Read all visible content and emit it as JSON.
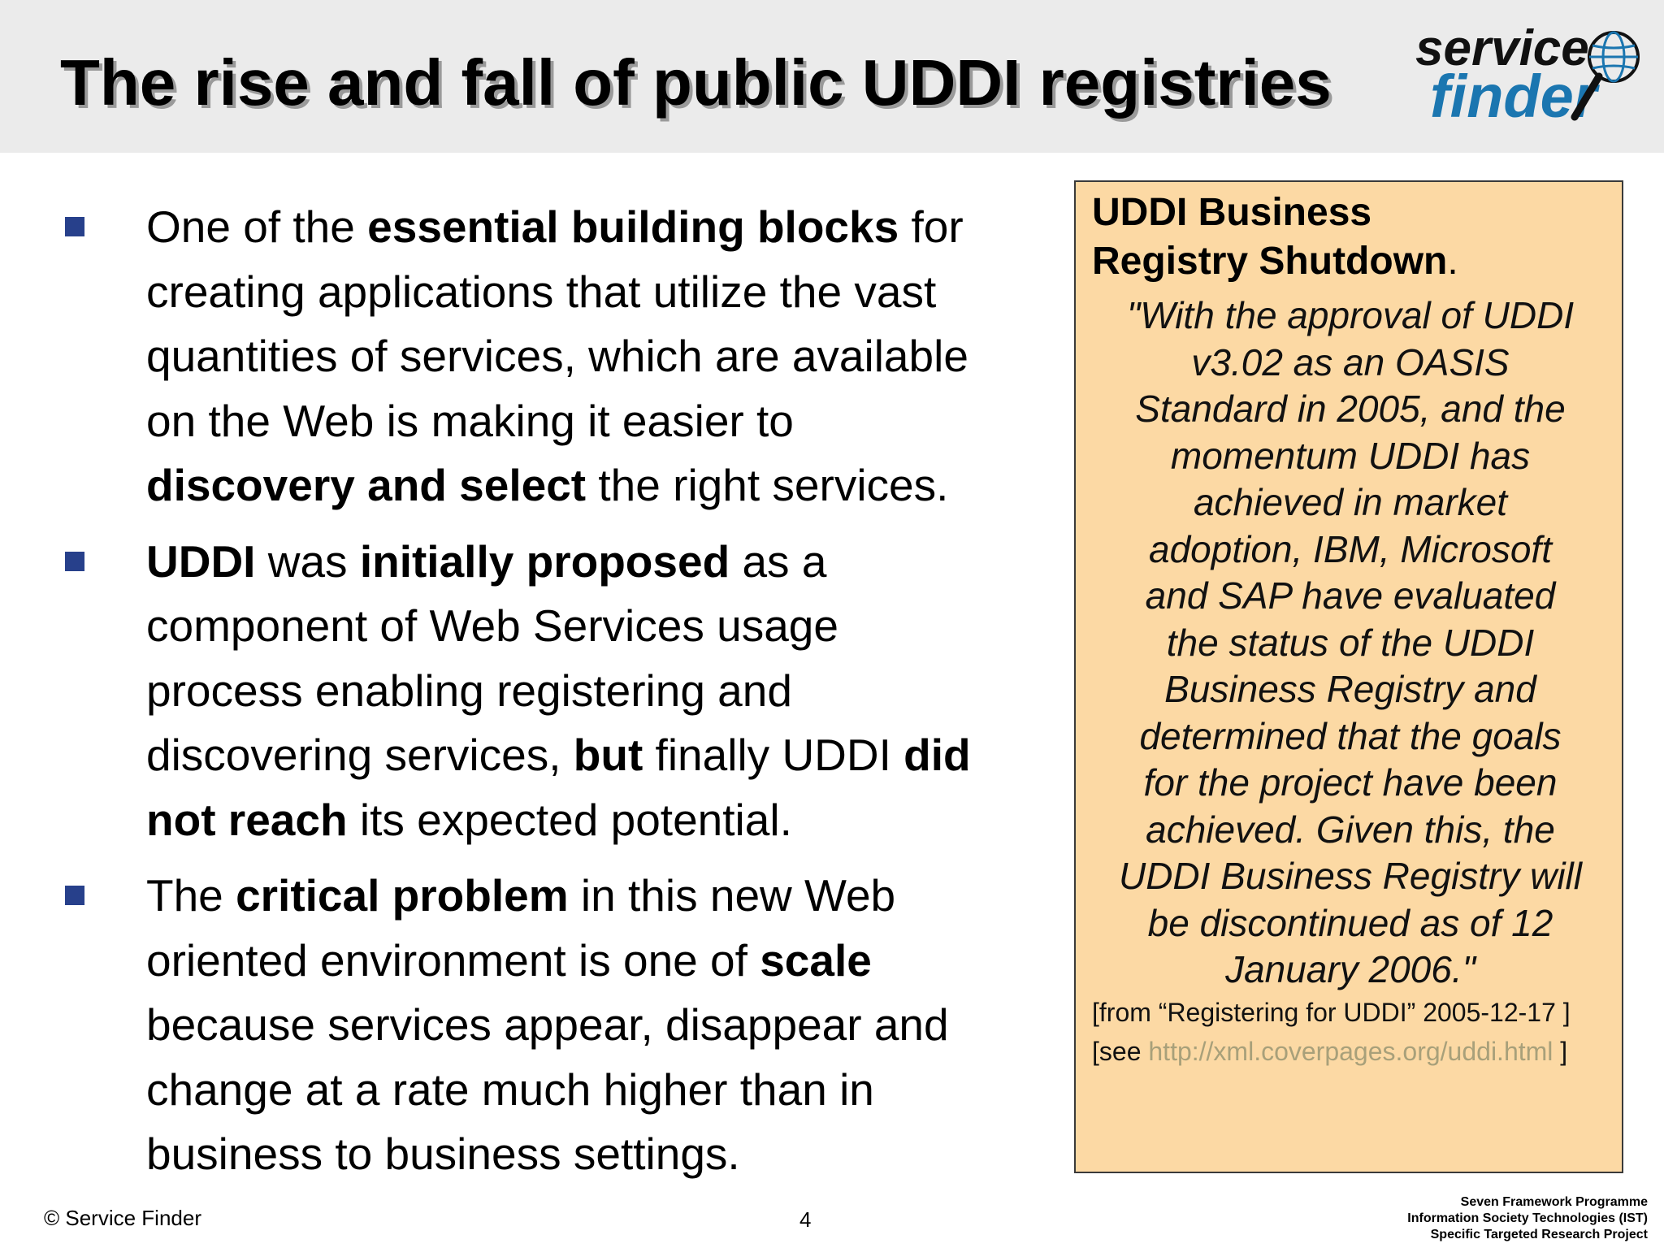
{
  "slide": {
    "title": "The rise and fall of public UDDI registries"
  },
  "logo": {
    "word1": "service",
    "word2": "finder",
    "icon": "globe-magnifier-icon",
    "color_accent": "#1b76b0"
  },
  "bullets": [
    {
      "lines": [
        [
          {
            "t": "One of the "
          },
          {
            "t": "essential building blocks",
            "b": true
          },
          {
            "t": " for"
          }
        ],
        [
          {
            "t": "creating applications that utilize the vast"
          }
        ],
        [
          {
            "t": "quantities of services, which are available"
          }
        ],
        [
          {
            "t": "on the Web is making it easier to"
          }
        ],
        [
          {
            "t": "discovery and select",
            "b": true
          },
          {
            "t": " the right services."
          }
        ]
      ]
    },
    {
      "lines": [
        [
          {
            "t": "UDDI",
            "b": true
          },
          {
            "t": " was "
          },
          {
            "t": "initially proposed",
            "b": true
          },
          {
            "t": " as a"
          }
        ],
        [
          {
            "t": "component of Web Services usage"
          }
        ],
        [
          {
            "t": "process enabling registering and"
          }
        ],
        [
          {
            "t": "discovering services, "
          },
          {
            "t": "but",
            "b": true
          },
          {
            "t": " finally UDDI "
          },
          {
            "t": "did",
            "b": true
          }
        ],
        [
          {
            "t": "not reach",
            "b": true
          },
          {
            "t": " its expected potential."
          }
        ]
      ]
    },
    {
      "lines": [
        [
          {
            "t": "The "
          },
          {
            "t": "critical problem",
            "b": true
          },
          {
            "t": " in this new Web"
          }
        ],
        [
          {
            "t": "oriented environment is one of "
          },
          {
            "t": "scale",
            "b": true
          }
        ],
        [
          {
            "t": "because services appear, disappear and"
          }
        ],
        [
          {
            "t": "change at a rate much higher than in"
          }
        ],
        [
          {
            "t": "business to business settings."
          }
        ]
      ]
    }
  ],
  "sidebar": {
    "heading_line1": "UDDI Business",
    "heading_line2": "Registry Shutdown",
    "heading_dot": ".",
    "quote_lines": [
      "\"With the approval of UDDI",
      "v3.02 as an OASIS",
      "Standard in 2005, and the",
      "momentum UDDI has",
      "achieved in market",
      "adoption, IBM, Microsoft",
      "and SAP have evaluated",
      "the status of the UDDI",
      "Business Registry and",
      "determined that the goals",
      "for the project have been",
      "achieved. Given this, the",
      "UDDI Business Registry will",
      "be discontinued as of 12",
      "January 2006.\""
    ],
    "source": "[from “Registering for UDDI” 2005-12-17 ]",
    "see_prefix": "[see ",
    "see_link": "http://xml.coverpages.org/uddi.html",
    "see_suffix": " ]",
    "background_color": "#fcd9a4",
    "link_color": "#a8a07a"
  },
  "footer": {
    "copyright": "© Service Finder",
    "page_number": "4",
    "programme_lines": [
      "Seven Framework Programme",
      "Information Society Technologies (IST)",
      "Specific Targeted Research Project"
    ]
  }
}
